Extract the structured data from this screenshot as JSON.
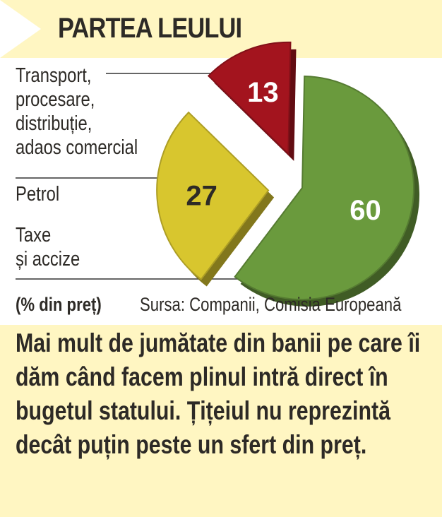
{
  "header": {
    "title": "PARTEA LEULUI"
  },
  "chart_data": {
    "type": "pie",
    "title": "PARTEA LEULUI",
    "unit_note": "(% din preț)",
    "source": "Sursa: Companii, Comisia Europeană",
    "slices": [
      {
        "name": "Transport,\nprocesare,\ndistribuție,\nadaos comercial",
        "value": 13,
        "label": "13",
        "color": "#a3141e"
      },
      {
        "name": "Petrol",
        "value": 27,
        "label": "27",
        "color": "#d8c62e"
      },
      {
        "name": "Taxe\nși accize",
        "value": 60,
        "label": "60",
        "color": "#6a9a3d"
      }
    ]
  },
  "caption": "Mai mult de jumătate din banii pe care îi dăm când facem plinul intră direct în bugetul statului. Țițeiul nu reprezintă decât puțin peste un sfert din preț."
}
